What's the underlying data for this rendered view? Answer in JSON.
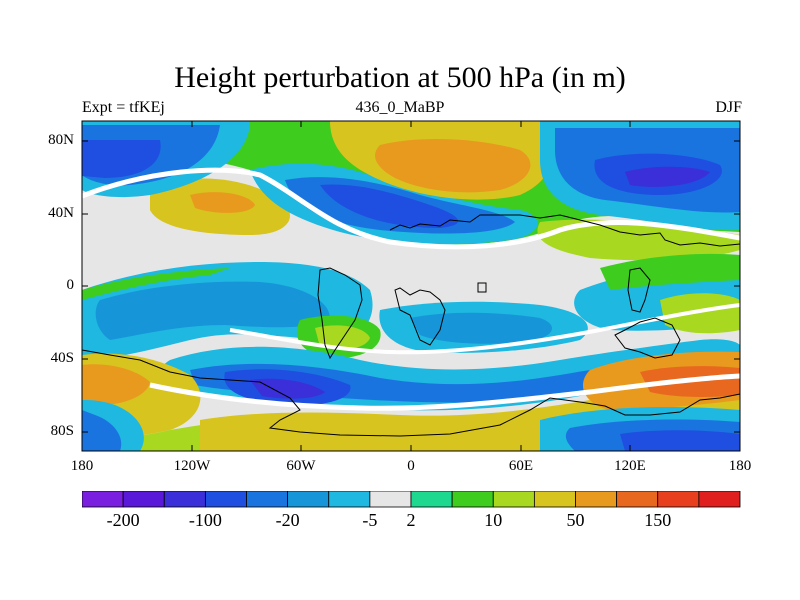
{
  "title": "Height perturbation at 500 hPa (in m)",
  "subtitle_left": "Expt = tfKEj",
  "subtitle_center": "436_0_MaBP",
  "subtitle_right": "DJF",
  "lat_ticks": [
    "80N",
    "40N",
    "0",
    "40S",
    "80S"
  ],
  "lon_ticks": [
    "180",
    "120W",
    "60W",
    "0",
    "60E",
    "120E",
    "180"
  ],
  "colorbar": {
    "colors": [
      "#7a1fe0",
      "#5a18d8",
      "#3a2fd8",
      "#1f4fe0",
      "#1a74e0",
      "#1696d8",
      "#1fb8e0",
      "#e6e6e6",
      "#1fd890",
      "#3ecc1f",
      "#a8d81f",
      "#d8c41f",
      "#e89a1f",
      "#e8681f",
      "#e8401f",
      "#e01f1f"
    ],
    "labels": [
      "-200",
      "-100",
      "-20",
      "-5",
      "2",
      "10",
      "50",
      "150"
    ],
    "label_bounds": [
      1,
      3,
      5,
      7,
      8,
      10,
      12,
      14
    ]
  },
  "colors": {
    "neutral": "#e6e6e6",
    "ocean_white": "#ffffff",
    "coast": "#000000"
  }
}
